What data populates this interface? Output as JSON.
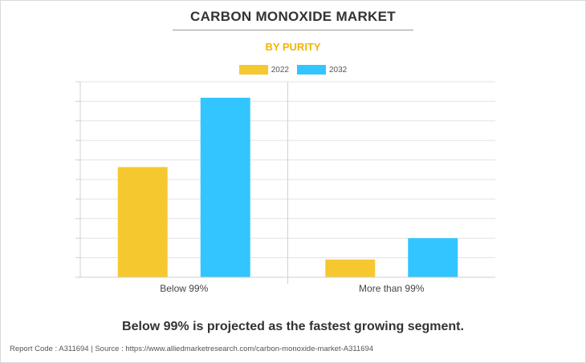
{
  "header": {
    "title": "CARBON MONOXIDE MARKET",
    "subtitle": "BY PURITY"
  },
  "chart_data": {
    "type": "bar",
    "categories": [
      "Below 99%",
      "More than 99%"
    ],
    "series": [
      {
        "name": "2022",
        "color": "#f6c830",
        "values": [
          6.2,
          1.0
        ]
      },
      {
        "name": "2032",
        "color": "#33c5ff",
        "values": [
          10.1,
          2.2
        ]
      }
    ],
    "ylim": [
      0,
      11
    ],
    "grid": true,
    "legend": "top-center"
  },
  "takeaway": "Below 99% is projected as the fastest growing segment.",
  "footer": "Report Code : A311694  |  Source : https://www.alliedmarketresearch.com/carbon-monoxide-market-A311694"
}
